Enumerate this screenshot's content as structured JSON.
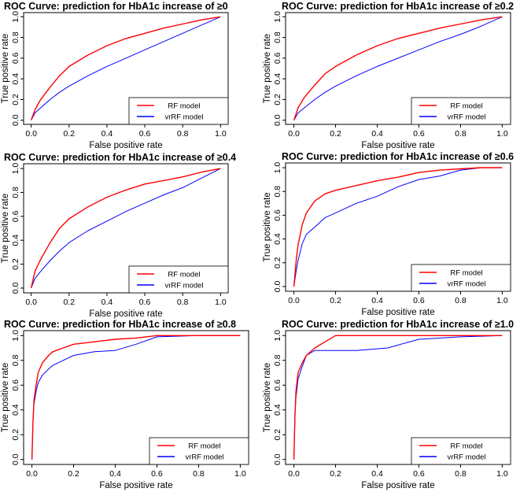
{
  "chart_data": [
    {
      "type": "line",
      "title": "ROC Curve: prediction for HbA1c increase of ≥0",
      "xlabel": "False positive rate",
      "ylabel": "True positive rate",
      "xlim": [
        0,
        1
      ],
      "ylim": [
        0,
        1
      ],
      "xticks": [
        "0.0",
        "0.2",
        "0.4",
        "0.6",
        "0.8",
        "1.0"
      ],
      "yticks": [
        "0.0",
        "0.2",
        "0.4",
        "0.6",
        "0.8",
        "1.0"
      ],
      "legend_position": "bottom-right",
      "series": [
        {
          "name": "RF model",
          "color": "#ff0000",
          "x": [
            0,
            0.02,
            0.05,
            0.1,
            0.15,
            0.2,
            0.3,
            0.4,
            0.5,
            0.6,
            0.7,
            0.8,
            0.9,
            1.0
          ],
          "y": [
            0,
            0.1,
            0.2,
            0.32,
            0.43,
            0.52,
            0.63,
            0.72,
            0.79,
            0.84,
            0.89,
            0.93,
            0.97,
            1.0
          ]
        },
        {
          "name": "vrRF model",
          "color": "#0000ff",
          "x": [
            0,
            0.02,
            0.05,
            0.1,
            0.15,
            0.2,
            0.3,
            0.4,
            0.5,
            0.6,
            0.7,
            0.8,
            0.9,
            1.0
          ],
          "y": [
            0,
            0.07,
            0.12,
            0.2,
            0.27,
            0.33,
            0.43,
            0.52,
            0.6,
            0.68,
            0.76,
            0.84,
            0.92,
            1.0
          ]
        }
      ]
    },
    {
      "type": "line",
      "title": "ROC Curve: prediction for HbA1c increase of ≥0.2",
      "xlabel": "False positive rate",
      "ylabel": "True positive rate",
      "xlim": [
        0,
        1
      ],
      "ylim": [
        0,
        1
      ],
      "xticks": [
        "0.0",
        "0.2",
        "0.4",
        "0.6",
        "0.8",
        "1.0"
      ],
      "yticks": [
        "0.0",
        "0.2",
        "0.4",
        "0.6",
        "0.8",
        "1.0"
      ],
      "legend_position": "bottom-right",
      "series": [
        {
          "name": "RF model",
          "color": "#ff0000",
          "x": [
            0,
            0.02,
            0.05,
            0.1,
            0.15,
            0.2,
            0.3,
            0.4,
            0.5,
            0.6,
            0.7,
            0.8,
            0.9,
            1.0
          ],
          "y": [
            0,
            0.12,
            0.22,
            0.34,
            0.45,
            0.52,
            0.63,
            0.72,
            0.79,
            0.84,
            0.89,
            0.93,
            0.97,
            1.0
          ]
        },
        {
          "name": "vrRF model",
          "color": "#0000ff",
          "x": [
            0,
            0.02,
            0.05,
            0.1,
            0.15,
            0.2,
            0.3,
            0.4,
            0.5,
            0.6,
            0.7,
            0.8,
            0.9,
            1.0
          ],
          "y": [
            0,
            0.07,
            0.12,
            0.2,
            0.27,
            0.33,
            0.43,
            0.52,
            0.6,
            0.68,
            0.76,
            0.83,
            0.91,
            1.0
          ]
        }
      ]
    },
    {
      "type": "line",
      "title": "ROC Curve: prediction for HbA1c increase of ≥0.4",
      "xlabel": "False positive rate",
      "ylabel": "True positive rate",
      "xlim": [
        0,
        1
      ],
      "ylim": [
        0,
        1
      ],
      "xticks": [
        "0.0",
        "0.2",
        "0.4",
        "0.6",
        "0.8",
        "1.0"
      ],
      "yticks": [
        "0.0",
        "0.2",
        "0.4",
        "0.6",
        "0.8",
        "1.0"
      ],
      "legend_position": "bottom-right",
      "series": [
        {
          "name": "RF model",
          "color": "#ff0000",
          "x": [
            0,
            0.02,
            0.05,
            0.1,
            0.15,
            0.2,
            0.3,
            0.4,
            0.5,
            0.6,
            0.7,
            0.8,
            0.9,
            1.0
          ],
          "y": [
            0,
            0.14,
            0.24,
            0.38,
            0.5,
            0.58,
            0.68,
            0.76,
            0.82,
            0.87,
            0.9,
            0.93,
            0.97,
            1.0
          ]
        },
        {
          "name": "vrRF model",
          "color": "#0000ff",
          "x": [
            0,
            0.02,
            0.05,
            0.1,
            0.15,
            0.2,
            0.3,
            0.4,
            0.5,
            0.6,
            0.7,
            0.8,
            0.9,
            1.0
          ],
          "y": [
            0,
            0.08,
            0.14,
            0.23,
            0.31,
            0.38,
            0.48,
            0.56,
            0.64,
            0.71,
            0.78,
            0.84,
            0.92,
            1.0
          ]
        }
      ]
    },
    {
      "type": "line",
      "title": "ROC Curve: prediction for HbA1c increase of ≥0.6",
      "xlabel": "False positive rate",
      "ylabel": "True positive rate",
      "xlim": [
        0,
        1
      ],
      "ylim": [
        0,
        1
      ],
      "xticks": [
        "0.0",
        "0.2",
        "0.4",
        "0.6",
        "0.8",
        "1.0"
      ],
      "yticks": [
        "0.0",
        "0.2",
        "0.4",
        "0.6",
        "0.8",
        "1.0"
      ],
      "legend_position": "bottom-right",
      "series": [
        {
          "name": "RF model",
          "color": "#ff0000",
          "x": [
            0,
            0.01,
            0.02,
            0.04,
            0.06,
            0.1,
            0.15,
            0.2,
            0.3,
            0.4,
            0.5,
            0.6,
            0.7,
            0.8,
            0.9,
            1.0
          ],
          "y": [
            0,
            0.2,
            0.35,
            0.52,
            0.62,
            0.72,
            0.78,
            0.81,
            0.85,
            0.89,
            0.92,
            0.96,
            0.98,
            0.99,
            1.0,
            1.0
          ]
        },
        {
          "name": "vrRF model",
          "color": "#0000ff",
          "x": [
            0,
            0.01,
            0.02,
            0.04,
            0.06,
            0.1,
            0.15,
            0.2,
            0.3,
            0.4,
            0.5,
            0.6,
            0.7,
            0.8,
            0.9,
            1.0
          ],
          "y": [
            0,
            0.12,
            0.22,
            0.36,
            0.44,
            0.5,
            0.58,
            0.62,
            0.7,
            0.76,
            0.84,
            0.9,
            0.93,
            0.98,
            1.0,
            1.0
          ]
        }
      ]
    },
    {
      "type": "line",
      "title": "ROC Curve: prediction for HbA1c increase of ≥0.8",
      "xlabel": "False positive rate",
      "ylabel": "True positive rate",
      "xlim": [
        0,
        1
      ],
      "ylim": [
        0,
        1
      ],
      "xticks": [
        "0.0",
        "0.2",
        "0.4",
        "0.6",
        "0.8",
        "1.0"
      ],
      "yticks": [
        "0.0",
        "0.2",
        "0.4",
        "0.6",
        "0.8",
        "1.0"
      ],
      "legend_position": "bottom-right",
      "series": [
        {
          "name": "RF model",
          "color": "#ff0000",
          "x": [
            0,
            0.005,
            0.01,
            0.02,
            0.03,
            0.05,
            0.08,
            0.1,
            0.15,
            0.2,
            0.3,
            0.4,
            0.5,
            0.6,
            0.8,
            1.0
          ],
          "y": [
            0,
            0.3,
            0.48,
            0.6,
            0.7,
            0.78,
            0.84,
            0.87,
            0.9,
            0.93,
            0.95,
            0.97,
            0.98,
            1.0,
            1.0,
            1.0
          ]
        },
        {
          "name": "vrRF model",
          "color": "#0000ff",
          "x": [
            0,
            0.005,
            0.01,
            0.02,
            0.03,
            0.05,
            0.08,
            0.1,
            0.15,
            0.2,
            0.3,
            0.4,
            0.5,
            0.6,
            0.8,
            1.0
          ],
          "y": [
            0,
            0.3,
            0.45,
            0.55,
            0.62,
            0.68,
            0.73,
            0.76,
            0.8,
            0.84,
            0.87,
            0.88,
            0.93,
            0.99,
            1.0,
            1.0
          ]
        }
      ]
    },
    {
      "type": "line",
      "title": "ROC Curve: prediction for HbA1c increase of ≥1.0",
      "xlabel": "False positive rate",
      "ylabel": "True positive rate",
      "xlim": [
        0,
        1
      ],
      "ylim": [
        0,
        1
      ],
      "xticks": [
        "0.0",
        "0.2",
        "0.4",
        "0.6",
        "0.8",
        "1.0"
      ],
      "yticks": [
        "0.0",
        "0.2",
        "0.4",
        "0.6",
        "0.8",
        "1.0"
      ],
      "legend_position": "bottom-right",
      "series": [
        {
          "name": "RF model",
          "color": "#ff0000",
          "x": [
            0,
            0.005,
            0.01,
            0.02,
            0.04,
            0.06,
            0.1,
            0.15,
            0.2,
            0.4,
            0.6,
            0.8,
            1.0
          ],
          "y": [
            0,
            0.35,
            0.55,
            0.7,
            0.78,
            0.84,
            0.9,
            0.95,
            1.0,
            1.0,
            1.0,
            1.0,
            1.0
          ]
        },
        {
          "name": "vrRF model",
          "color": "#0000ff",
          "x": [
            0,
            0.005,
            0.01,
            0.02,
            0.04,
            0.06,
            0.1,
            0.15,
            0.2,
            0.3,
            0.45,
            0.6,
            0.8,
            1.0
          ],
          "y": [
            0,
            0.35,
            0.5,
            0.65,
            0.75,
            0.84,
            0.88,
            0.88,
            0.88,
            0.88,
            0.9,
            0.97,
            0.99,
            1.0
          ]
        }
      ]
    }
  ]
}
